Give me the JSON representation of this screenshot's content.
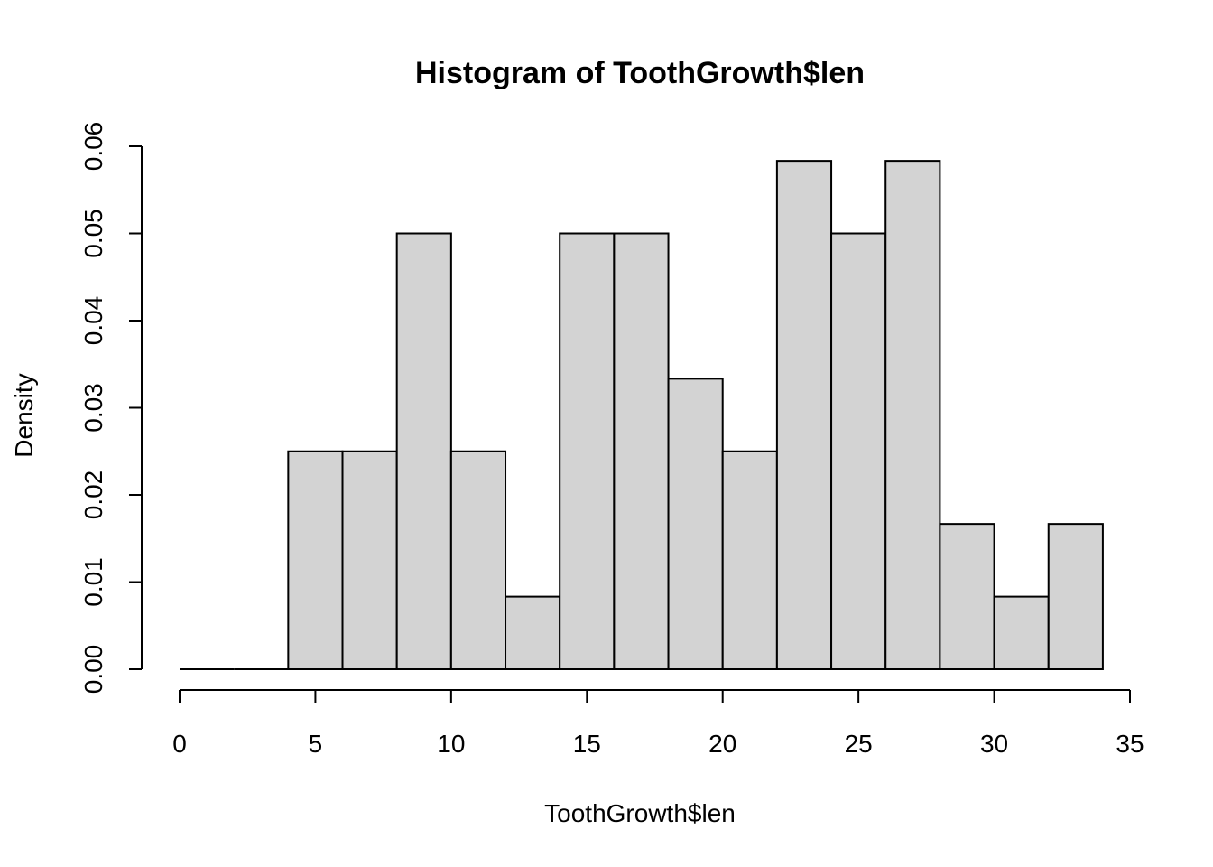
{
  "chart_data": {
    "type": "bar",
    "title": "Histogram of ToothGrowth$len",
    "xlabel": "ToothGrowth$len",
    "ylabel": "Density",
    "bar_color": "#d3d3d3",
    "outline_color": "#000000",
    "grid": false,
    "xlim": [
      0,
      35
    ],
    "ylim": [
      0,
      0.06
    ],
    "x_ticks": [
      "0",
      "5",
      "10",
      "15",
      "20",
      "25",
      "30",
      "35"
    ],
    "y_ticks": [
      "0.00",
      "0.01",
      "0.02",
      "0.03",
      "0.04",
      "0.05",
      "0.06"
    ],
    "bins": [
      {
        "from": 0,
        "to": 2,
        "density": 0
      },
      {
        "from": 2,
        "to": 4,
        "density": 0
      },
      {
        "from": 4,
        "to": 6,
        "density": 0.025
      },
      {
        "from": 6,
        "to": 8,
        "density": 0.025
      },
      {
        "from": 8,
        "to": 10,
        "density": 0.05
      },
      {
        "from": 10,
        "to": 12,
        "density": 0.025
      },
      {
        "from": 12,
        "to": 14,
        "density": 0.00833
      },
      {
        "from": 14,
        "to": 16,
        "density": 0.05
      },
      {
        "from": 16,
        "to": 18,
        "density": 0.05
      },
      {
        "from": 18,
        "to": 20,
        "density": 0.03333
      },
      {
        "from": 20,
        "to": 22,
        "density": 0.025
      },
      {
        "from": 22,
        "to": 24,
        "density": 0.05833
      },
      {
        "from": 24,
        "to": 26,
        "density": 0.05
      },
      {
        "from": 26,
        "to": 28,
        "density": 0.05833
      },
      {
        "from": 28,
        "to": 30,
        "density": 0.01667
      },
      {
        "from": 30,
        "to": 32,
        "density": 0.00833
      },
      {
        "from": 32,
        "to": 34,
        "density": 0.01667
      }
    ]
  }
}
